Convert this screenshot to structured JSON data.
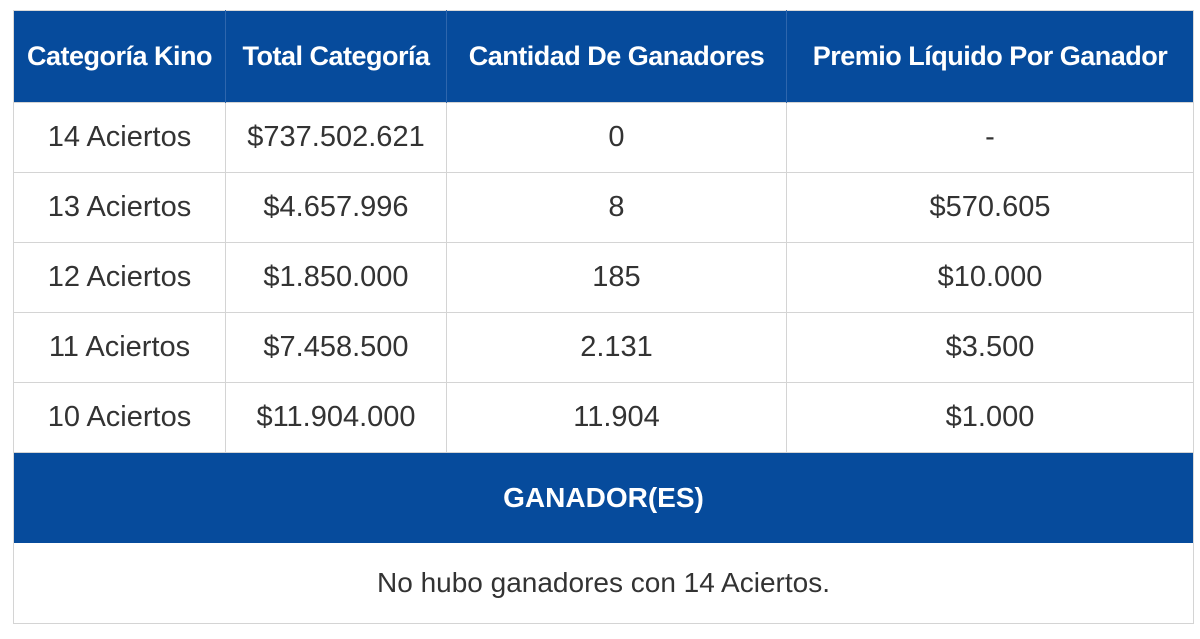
{
  "table": {
    "headers": [
      "Categoría Kino",
      "Total Categoría",
      "Cantidad De Ganadores",
      "Premio Líquido Por Ganador"
    ],
    "rows": [
      [
        "14 Aciertos",
        "$737.502.621",
        "0",
        "-"
      ],
      [
        "13 Aciertos",
        "$4.657.996",
        "8",
        "$570.605"
      ],
      [
        "12 Aciertos",
        "$1.850.000",
        "185",
        "$10.000"
      ],
      [
        "11 Aciertos",
        "$7.458.500",
        "2.131",
        "$3.500"
      ],
      [
        "10 Aciertos",
        "$11.904.000",
        "11.904",
        "$1.000"
      ]
    ]
  },
  "winners": {
    "title": "GANADOR(ES)",
    "message": "No hubo ganadores con 14 Aciertos."
  },
  "colors": {
    "header_bg": "#064b9c",
    "header_text": "#ffffff",
    "body_text": "#333333",
    "border": "#d4d4d4"
  }
}
